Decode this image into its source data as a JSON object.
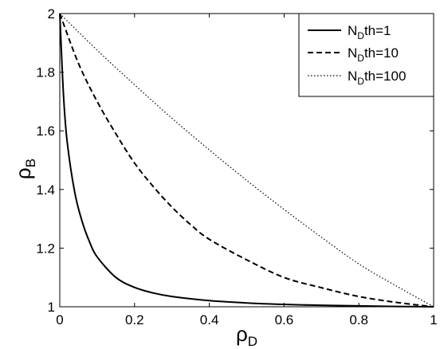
{
  "chart_data": {
    "type": "line",
    "xlabel": {
      "main": "ρ",
      "sub": "D"
    },
    "ylabel": {
      "main": "ρ",
      "sub": "B"
    },
    "xlim": [
      0,
      1
    ],
    "ylim": [
      1,
      2
    ],
    "xticks": [
      "0",
      "0.2",
      "0.4",
      "0.6",
      "0.8",
      "1"
    ],
    "yticks": [
      "1",
      "1.2",
      "1.4",
      "1.6",
      "1.8",
      "2"
    ],
    "grid": false,
    "legend_position": "top-right",
    "series": [
      {
        "name_main": "N",
        "name_sub": "D",
        "name_rest": "th=1",
        "style": "solid",
        "x": [
          0,
          0.01,
          0.02,
          0.04,
          0.06,
          0.08,
          0.1,
          0.15,
          0.2,
          0.25,
          0.3,
          0.4,
          0.5,
          0.6,
          0.7,
          0.8,
          0.9,
          1
        ],
        "y": [
          2,
          1.72,
          1.56,
          1.39,
          1.29,
          1.22,
          1.17,
          1.1,
          1.066,
          1.047,
          1.035,
          1.021,
          1.013,
          1.008,
          1.005,
          1.003,
          1.001,
          1
        ]
      },
      {
        "name_main": "N",
        "name_sub": "D",
        "name_rest": "th=10",
        "style": "dashed",
        "x": [
          0,
          0.05,
          0.1,
          0.15,
          0.2,
          0.25,
          0.3,
          0.35,
          0.4,
          0.5,
          0.6,
          0.7,
          0.8,
          0.9,
          1
        ],
        "y": [
          2,
          1.83,
          1.7,
          1.59,
          1.49,
          1.41,
          1.34,
          1.28,
          1.23,
          1.16,
          1.1,
          1.065,
          1.035,
          1.015,
          1
        ]
      },
      {
        "name_main": "N",
        "name_sub": "D",
        "name_rest": "th=100",
        "style": "dotted",
        "x": [
          0,
          0.1,
          0.2,
          0.3,
          0.4,
          0.5,
          0.6,
          0.7,
          0.8,
          0.9,
          1
        ],
        "y": [
          2,
          1.875,
          1.757,
          1.643,
          1.535,
          1.431,
          1.332,
          1.237,
          1.146,
          1.071,
          1
        ]
      }
    ]
  }
}
